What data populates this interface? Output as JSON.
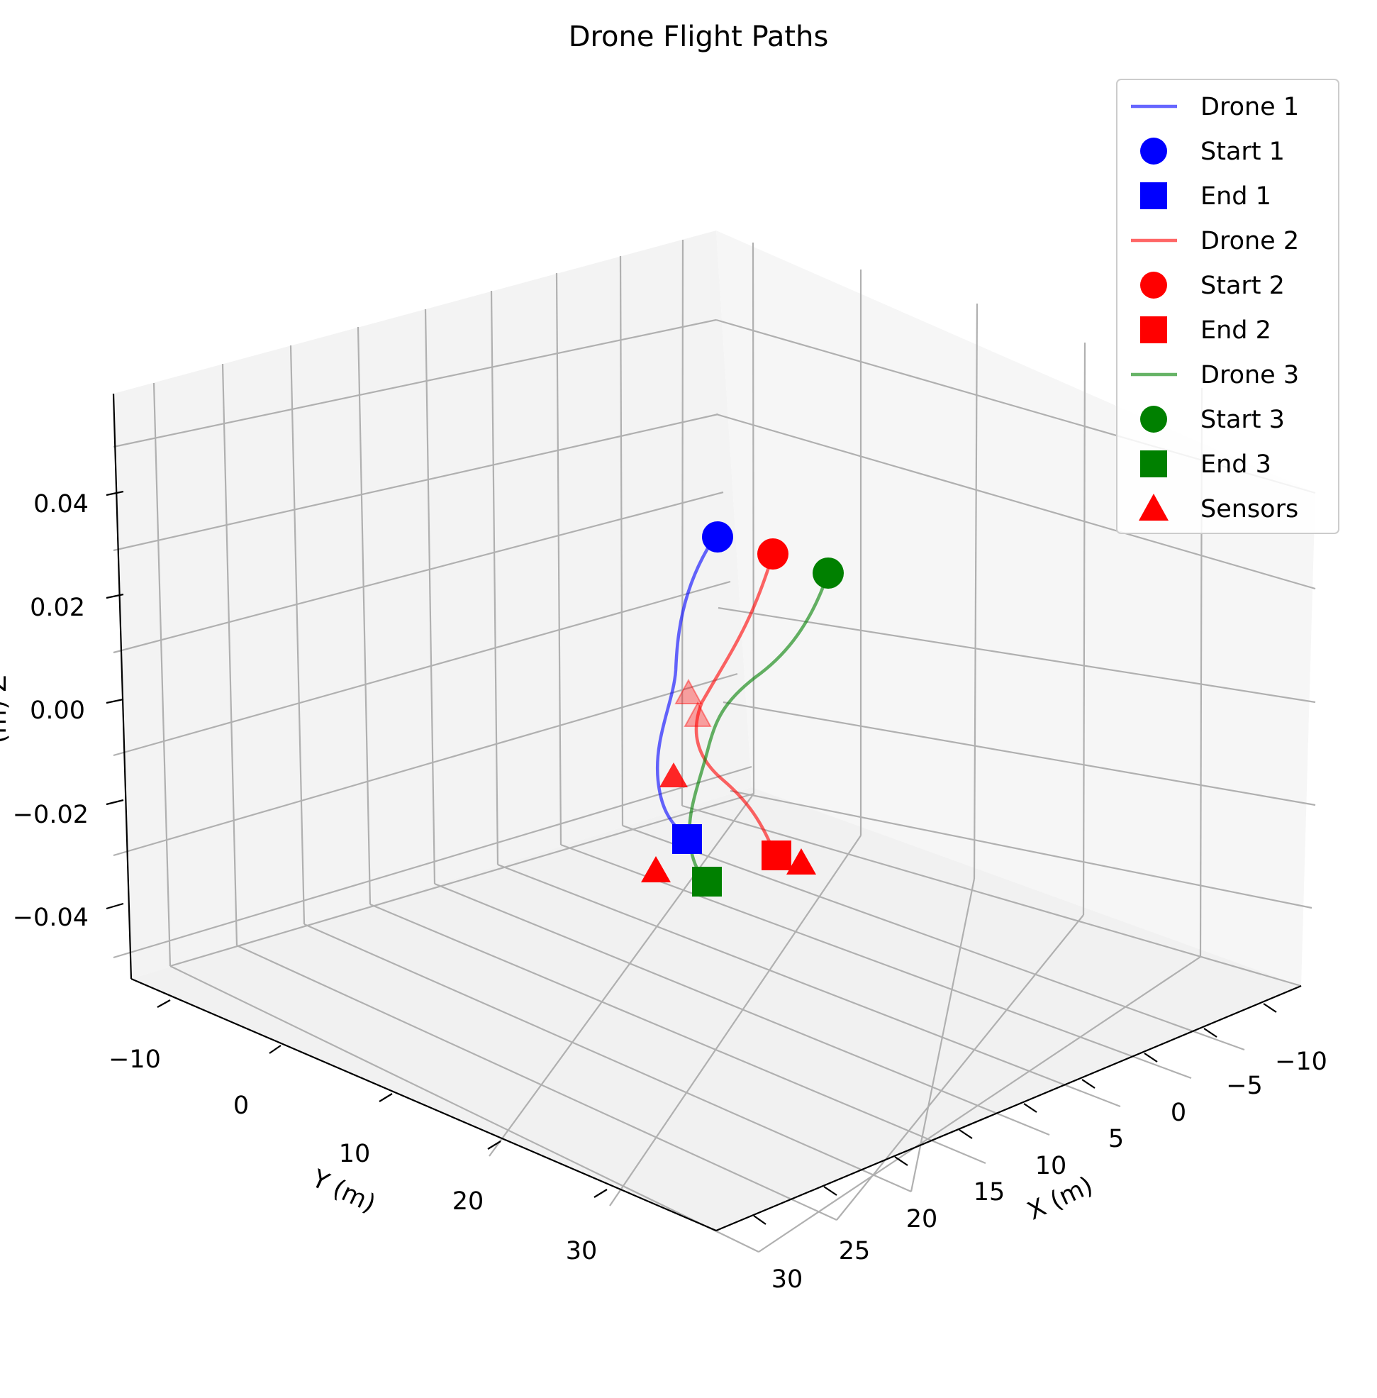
{
  "chart_data": {
    "type": "line-3d",
    "title": "Drone Flight Paths",
    "xlabel": "X (m)",
    "ylabel": "Y (m)",
    "zlabel": "Z (m)",
    "zlabel_visible": "(m) Z",
    "xlim": [
      -12,
      33
    ],
    "ylim": [
      -12,
      36
    ],
    "zlim": [
      -0.055,
      0.055
    ],
    "x_ticks": [
      "−10",
      "−5",
      "0",
      "5",
      "10",
      "15",
      "20",
      "25",
      "30"
    ],
    "y_ticks": [
      "−10",
      "0",
      "10",
      "20",
      "30"
    ],
    "z_ticks": [
      "−0.04",
      "−0.02",
      "0.00",
      "0.02",
      "0.04"
    ],
    "grid": true,
    "legend_position": "top-right",
    "colors": {
      "drone1": "#0000ff",
      "drone2": "#ff0000",
      "drone3": "#008000",
      "sensors": "#ff0000",
      "pane_left": "#f3f3f3",
      "pane_right": "#f6f6f6",
      "pane_floor": "#f1f1f1",
      "grid": "#b0b0b0"
    },
    "series": [
      {
        "name": "Drone 1",
        "color": "#0000ff",
        "start_name": "Start 1",
        "end_name": "End 1",
        "path_screen_hint": "curve",
        "start": {
          "x": -3,
          "y": -2,
          "z": 0.03
        },
        "end": {
          "x": 6,
          "y": 5,
          "z": -0.03
        }
      },
      {
        "name": "Drone 2",
        "color": "#ff0000",
        "start_name": "Start 2",
        "end_name": "End 2",
        "start": {
          "x": 2,
          "y": 1,
          "z": 0.03
        },
        "end": {
          "x": 18,
          "y": 2,
          "z": -0.03
        }
      },
      {
        "name": "Drone 3",
        "color": "#008000",
        "start_name": "Start 3",
        "end_name": "End 3",
        "start": {
          "x": 10,
          "y": 1,
          "z": 0.03
        },
        "end": {
          "x": 10,
          "y": 8,
          "z": -0.03
        }
      }
    ],
    "sensors": {
      "name": "Sensors",
      "points": [
        {
          "x": 3,
          "y": 11,
          "z": 0.0
        },
        {
          "x": 4,
          "y": 12,
          "z": 0.0
        },
        {
          "x": 5,
          "y": 8,
          "z": -0.02
        },
        {
          "x": 4,
          "y": 12,
          "z": -0.035
        },
        {
          "x": 22,
          "y": 2,
          "z": -0.03
        }
      ]
    },
    "legend": [
      {
        "label": "Drone 1",
        "marker": "line",
        "color": "#0000ff"
      },
      {
        "label": "Start 1",
        "marker": "circle",
        "color": "#0000ff"
      },
      {
        "label": "End 1",
        "marker": "square",
        "color": "#0000ff"
      },
      {
        "label": "Drone 2",
        "marker": "line",
        "color": "#ff0000"
      },
      {
        "label": "Start 2",
        "marker": "circle",
        "color": "#ff0000"
      },
      {
        "label": "End 2",
        "marker": "square",
        "color": "#ff0000"
      },
      {
        "label": "Drone 3",
        "marker": "line",
        "color": "#008000"
      },
      {
        "label": "Start 3",
        "marker": "circle",
        "color": "#008000"
      },
      {
        "label": "End 3",
        "marker": "square",
        "color": "#008000"
      },
      {
        "label": "Sensors",
        "marker": "triangle",
        "color": "#ff0000"
      }
    ]
  }
}
